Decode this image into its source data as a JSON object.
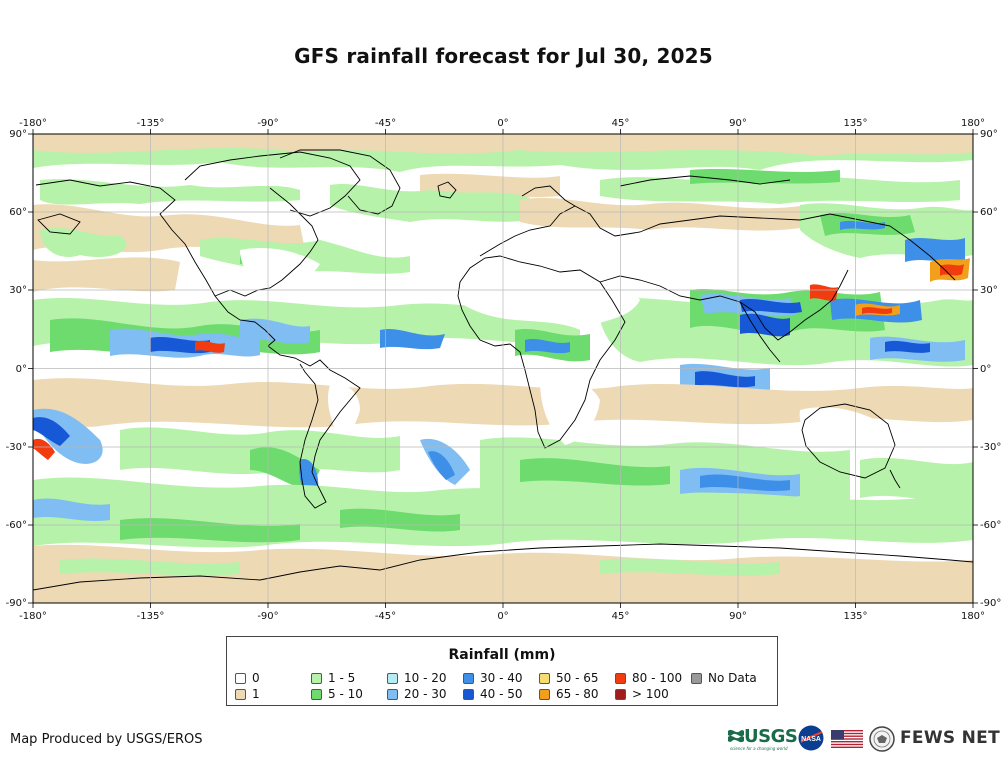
{
  "title": "GFS rainfall forecast for Jul 30, 2025",
  "map": {
    "lon_ticks": [
      "-180°",
      "-135°",
      "-90°",
      "-45°",
      "0°",
      "45°",
      "90°",
      "135°",
      "180°"
    ],
    "lat_ticks": [
      "90°",
      "60°",
      "30°",
      "0°",
      "-30°",
      "-60°",
      "-90°"
    ]
  },
  "legend": {
    "title": "Rainfall (mm)",
    "items": [
      {
        "label": "0",
        "color": "#ffffff"
      },
      {
        "label": "1",
        "color": "#eed9b5"
      },
      {
        "label": "1 - 5",
        "color": "#b6f2a9"
      },
      {
        "label": "5 - 10",
        "color": "#6ddb6d"
      },
      {
        "label": "10 - 20",
        "color": "#b3ecf2"
      },
      {
        "label": "20 - 30",
        "color": "#7fbdf2"
      },
      {
        "label": "30 - 40",
        "color": "#3d8fe8"
      },
      {
        "label": "40 - 50",
        "color": "#1758d6"
      },
      {
        "label": "50 - 65",
        "color": "#f7dd6f"
      },
      {
        "label": "65 - 80",
        "color": "#f29f1b"
      },
      {
        "label": "80 - 100",
        "color": "#f23b0f"
      },
      {
        "label": "> 100",
        "color": "#a31c1c"
      },
      {
        "label": "No Data",
        "color": "#999999"
      }
    ]
  },
  "credit": "Map Produced by USGS/EROS",
  "logos": {
    "usgs": "USGS",
    "usgs_tagline": "science for a changing world",
    "nasa": "NASA",
    "fews": "FEWS NET"
  }
}
